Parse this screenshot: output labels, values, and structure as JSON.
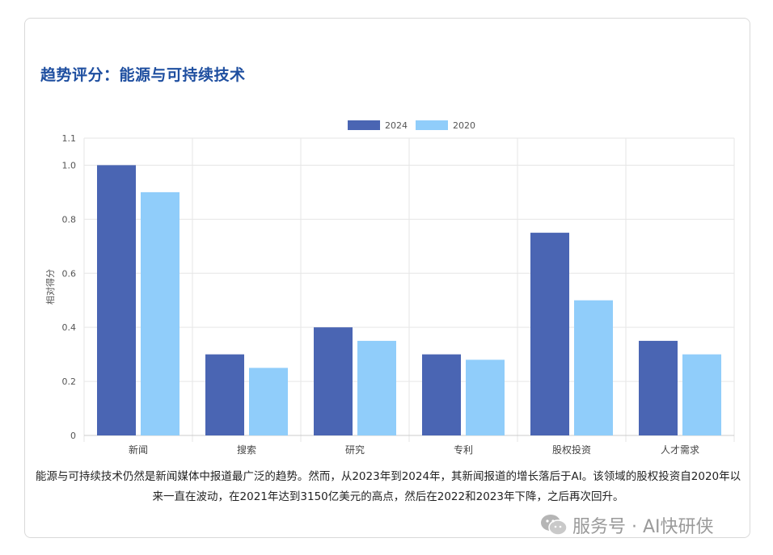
{
  "title": "趋势评分：能源与可持续技术",
  "chart_data": {
    "type": "bar",
    "categories": [
      "新闻",
      "搜索",
      "研究",
      "专利",
      "股权投资",
      "人才需求"
    ],
    "series": [
      {
        "name": "2024",
        "values": [
          1.0,
          0.3,
          0.4,
          0.3,
          0.75,
          0.35
        ],
        "color": "#4a65b3"
      },
      {
        "name": "2020",
        "values": [
          0.9,
          0.25,
          0.35,
          0.28,
          0.5,
          0.3
        ],
        "color": "#90cdfa"
      }
    ],
    "ylabel": "相对得分",
    "ylim": [
      0,
      1.1
    ],
    "yticks": [
      "0",
      "0.2",
      "0.4",
      "0.6",
      "0.8",
      "1.0",
      "1.1"
    ],
    "grid": true,
    "legend": "top-center"
  },
  "description": "能源与可持续技术仍然是新闻媒体中报道最广泛的趋势。然而，从2023年到2024年，其新闻报道的增长落后于AI。该领域的股权投资自2020年以来一直在波动，在2021年达到3150亿美元的高点，然后在2022和2023年下降，之后再次回升。",
  "watermark": {
    "icon": "wechat-icon",
    "text": "服务号 · AI快研侠"
  }
}
